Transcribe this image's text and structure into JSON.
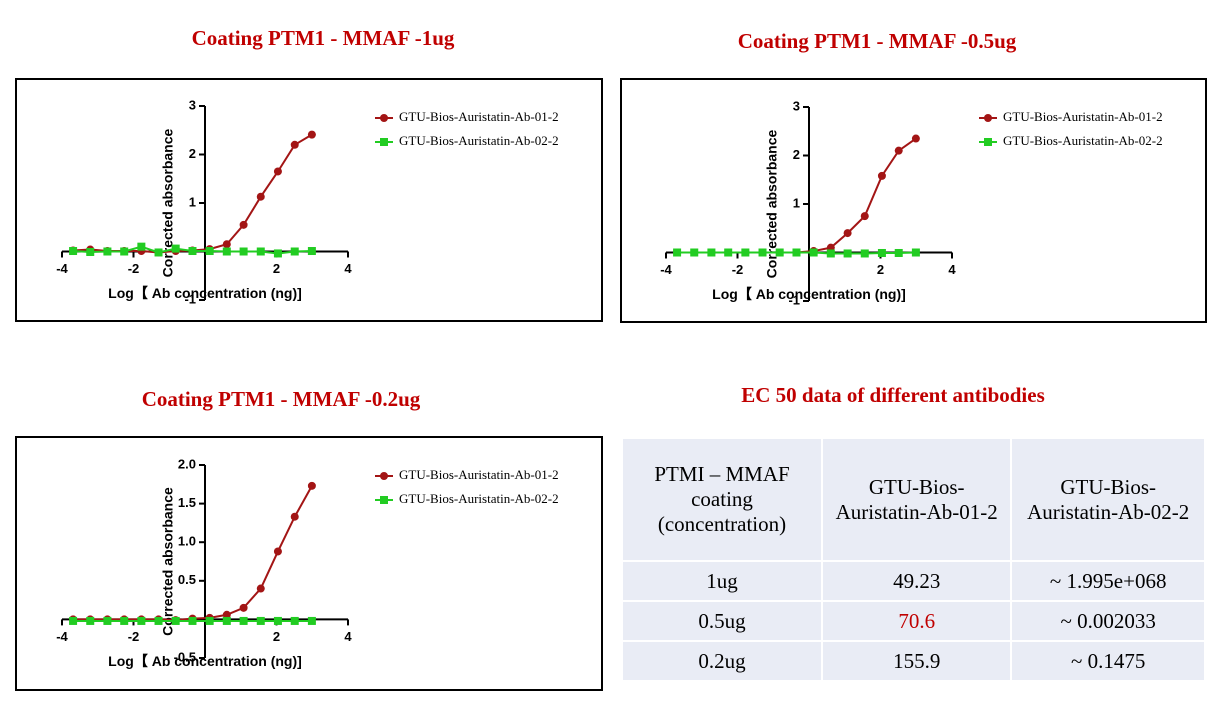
{
  "chart_data": [
    {
      "type": "line",
      "title": "Coating PTM1 - MMAF -1ug",
      "x_label": "Log【 Ab concentration (ng)]",
      "y_label": "Corrected absorbance",
      "x": [
        -3.69,
        -3.21,
        -2.73,
        -2.26,
        -1.78,
        -1.3,
        -0.82,
        -0.35,
        0.13,
        0.61,
        1.08,
        1.56,
        2.04,
        2.51,
        2.99
      ],
      "series": [
        {
          "name": "GTU-Bios-Auristatin-Ab-01-2",
          "color": "#a31515",
          "marker": "circle",
          "values": [
            0.02,
            0.04,
            0.01,
            0.01,
            0.01,
            -0.02,
            0.01,
            0.02,
            0.05,
            0.15,
            0.55,
            1.13,
            1.65,
            2.2,
            2.41
          ]
        },
        {
          "name": "GTU-Bios-Auristatin-Ab-02-2",
          "color": "#22cc22",
          "marker": "square",
          "values": [
            0.01,
            -0.01,
            0,
            0,
            0.1,
            -0.02,
            0.06,
            0.01,
            0.01,
            0,
            0,
            0,
            -0.04,
            0,
            0.01
          ]
        }
      ],
      "xlim": [
        -4,
        4
      ],
      "xticks": [
        -4,
        -2,
        2,
        4
      ],
      "ylim": [
        -1,
        3
      ],
      "yticks": [
        -1,
        1,
        2,
        3
      ]
    },
    {
      "type": "line",
      "title": "Coating PTM1 - MMAF -0.5ug",
      "x_label": "Log【 Ab concentration (ng)]",
      "y_label": "Corrected absorbance",
      "x": [
        -3.69,
        -3.21,
        -2.73,
        -2.26,
        -1.78,
        -1.3,
        -0.82,
        -0.35,
        0.13,
        0.61,
        1.08,
        1.56,
        2.04,
        2.51,
        2.99
      ],
      "series": [
        {
          "name": "GTU-Bios-Auristatin-Ab-01-2",
          "color": "#a31515",
          "marker": "circle",
          "values": [
            0,
            0,
            0,
            0,
            0,
            0,
            0,
            0,
            0.03,
            0.1,
            0.4,
            0.75,
            1.58,
            2.1,
            2.35
          ]
        },
        {
          "name": "GTU-Bios-Auristatin-Ab-02-2",
          "color": "#22cc22",
          "marker": "square",
          "values": [
            0,
            0,
            0,
            0,
            0,
            0,
            0,
            0,
            0,
            -0.02,
            -0.02,
            -0.02,
            -0.01,
            -0.01,
            0
          ]
        }
      ],
      "xlim": [
        -4,
        4
      ],
      "xticks": [
        -4,
        -2,
        2,
        4
      ],
      "ylim": [
        -1,
        3
      ],
      "yticks": [
        -1,
        1,
        2,
        3
      ]
    },
    {
      "type": "line",
      "title": "Coating PTM1 - MMAF -0.2ug",
      "x_label": "Log【 Ab concentration (ng)]",
      "y_label": "Corrected absorbance",
      "x": [
        -3.69,
        -3.21,
        -2.73,
        -2.26,
        -1.78,
        -1.3,
        -0.82,
        -0.35,
        0.13,
        0.61,
        1.08,
        1.56,
        2.04,
        2.51,
        2.99
      ],
      "series": [
        {
          "name": "GTU-Bios-Auristatin-Ab-01-2",
          "color": "#a31515",
          "marker": "circle",
          "values": [
            0,
            0,
            0,
            0,
            0,
            0,
            -0.01,
            0.01,
            0.02,
            0.06,
            0.15,
            0.4,
            0.88,
            1.33,
            1.73
          ]
        },
        {
          "name": "GTU-Bios-Auristatin-Ab-02-2",
          "color": "#22cc22",
          "marker": "square",
          "values": [
            -0.02,
            -0.02,
            -0.02,
            -0.02,
            -0.02,
            -0.02,
            -0.02,
            -0.02,
            -0.02,
            -0.02,
            -0.02,
            -0.02,
            -0.02,
            -0.02,
            -0.02
          ]
        }
      ],
      "xlim": [
        -4,
        4
      ],
      "xticks": [
        -4,
        -2,
        2,
        4
      ],
      "ylim": [
        -0.5,
        2.0
      ],
      "yticks": [
        -0.5,
        0.5,
        {
          "value": 1.0,
          "label": "1.0"
        },
        1.5,
        {
          "value": 2.0,
          "label": "2.0"
        }
      ]
    }
  ],
  "table": {
    "title": "EC 50 data of different antibodies",
    "header": [
      "PTMI – MMAF coating (concentration)",
      "GTU-Bios-Auristatin-Ab-01-2",
      "GTU-Bios-Auristatin-Ab-02-2"
    ],
    "rows": [
      [
        "1ug",
        "49.23",
        "~ 1.995e+068"
      ],
      [
        "0.5ug",
        "70.6",
        "~ 0.002033"
      ],
      [
        "0.2ug",
        "155.9",
        "~ 0.1475"
      ]
    ]
  }
}
